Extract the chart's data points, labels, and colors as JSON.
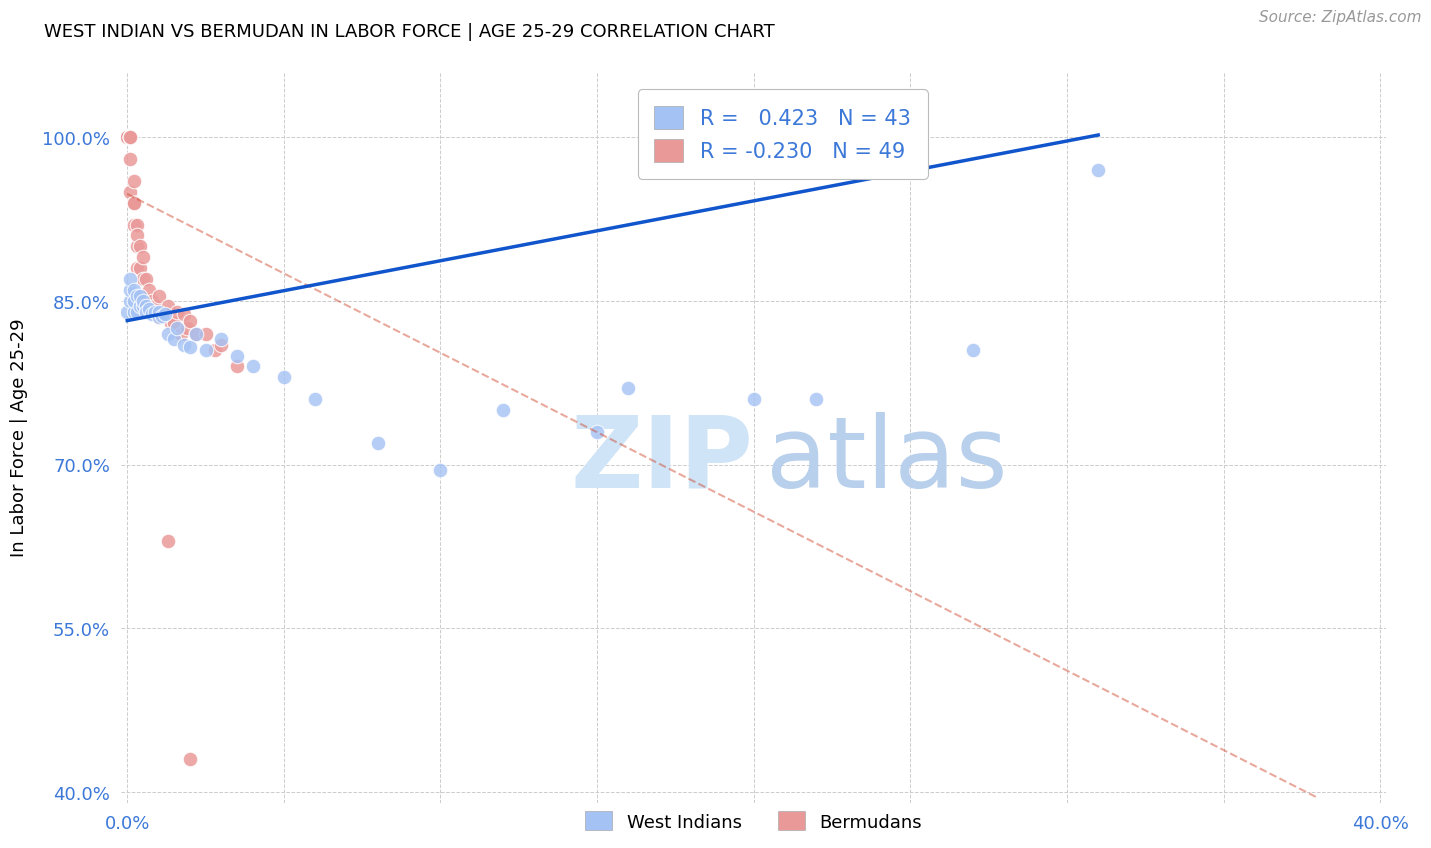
{
  "title": "WEST INDIAN VS BERMUDAN IN LABOR FORCE | AGE 25-29 CORRELATION CHART",
  "source": "Source: ZipAtlas.com",
  "ylabel": "In Labor Force | Age 25-29",
  "xlim": [
    -0.002,
    0.402
  ],
  "ylim": [
    0.39,
    1.06
  ],
  "xtick_positions": [
    0.0,
    0.05,
    0.1,
    0.15,
    0.2,
    0.25,
    0.3,
    0.35,
    0.4
  ],
  "xticklabels": [
    "0.0%",
    "",
    "",
    "",
    "",
    "",
    "",
    "",
    "40.0%"
  ],
  "ytick_positions": [
    0.4,
    0.55,
    0.7,
    0.85,
    1.0
  ],
  "yticklabels": [
    "40.0%",
    "55.0%",
    "70.0%",
    "85.0%",
    "100.0%"
  ],
  "legend_r_blue": " 0.423",
  "legend_n_blue": "43",
  "legend_r_pink": "-0.230",
  "legend_n_pink": "49",
  "legend_labels": [
    "West Indians",
    "Bermudans"
  ],
  "blue_color": "#a4c2f4",
  "pink_color": "#ea9999",
  "trendline_blue_color": "#1155cc",
  "trendline_pink_color": "#cc4125",
  "west_indians_x": [
    0.0,
    0.001,
    0.001,
    0.001,
    0.002,
    0.002,
    0.002,
    0.003,
    0.003,
    0.004,
    0.004,
    0.005,
    0.005,
    0.006,
    0.006,
    0.007,
    0.008,
    0.009,
    0.01,
    0.01,
    0.011,
    0.012,
    0.013,
    0.015,
    0.016,
    0.018,
    0.02,
    0.022,
    0.025,
    0.03,
    0.035,
    0.04,
    0.05,
    0.06,
    0.08,
    0.1,
    0.12,
    0.15,
    0.16,
    0.2,
    0.22,
    0.27,
    0.31
  ],
  "west_indians_y": [
    0.84,
    0.85,
    0.86,
    0.87,
    0.84,
    0.85,
    0.86,
    0.84,
    0.855,
    0.845,
    0.855,
    0.845,
    0.85,
    0.845,
    0.84,
    0.843,
    0.838,
    0.84,
    0.835,
    0.84,
    0.836,
    0.838,
    0.82,
    0.815,
    0.825,
    0.81,
    0.808,
    0.82,
    0.805,
    0.815,
    0.8,
    0.79,
    0.78,
    0.76,
    0.72,
    0.695,
    0.75,
    0.73,
    0.77,
    0.76,
    0.76,
    0.805,
    0.97
  ],
  "bermudans_x": [
    0.0,
    0.0,
    0.0,
    0.0,
    0.001,
    0.001,
    0.001,
    0.001,
    0.001,
    0.001,
    0.001,
    0.002,
    0.002,
    0.002,
    0.002,
    0.002,
    0.003,
    0.003,
    0.003,
    0.003,
    0.004,
    0.004,
    0.005,
    0.005,
    0.006,
    0.006,
    0.007,
    0.007,
    0.008,
    0.009,
    0.01,
    0.01,
    0.011,
    0.012,
    0.013,
    0.014,
    0.015,
    0.016,
    0.017,
    0.018,
    0.019,
    0.02,
    0.022,
    0.025,
    0.028,
    0.03,
    0.035,
    0.013,
    0.02
  ],
  "bermudans_y": [
    1.0,
    1.0,
    1.0,
    1.0,
    1.0,
    1.0,
    1.0,
    1.0,
    1.0,
    0.95,
    0.98,
    0.96,
    0.94,
    0.94,
    0.92,
    0.94,
    0.92,
    0.9,
    0.88,
    0.91,
    0.9,
    0.88,
    0.87,
    0.89,
    0.87,
    0.85,
    0.86,
    0.845,
    0.85,
    0.845,
    0.835,
    0.855,
    0.838,
    0.84,
    0.845,
    0.83,
    0.83,
    0.84,
    0.82,
    0.838,
    0.825,
    0.832,
    0.82,
    0.82,
    0.805,
    0.81,
    0.79,
    0.63,
    0.43
  ],
  "blue_trendline_x": [
    0.0,
    0.31
  ],
  "blue_trendline_y": [
    0.832,
    1.002
  ],
  "pink_trendline_x": [
    0.0,
    0.38
  ],
  "pink_trendline_y": [
    0.948,
    0.395
  ]
}
